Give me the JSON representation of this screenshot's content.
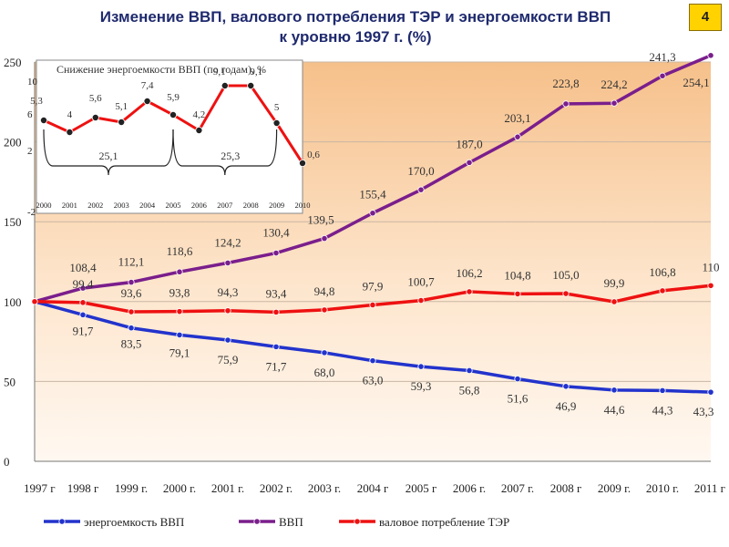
{
  "title_line1": "Изменение ВВП, валового потребления ТЭР и энергоемкости ВВП",
  "title_line2": "к уровню 1997 г. (%)",
  "slide_number": "4",
  "chart_data": [
    {
      "type": "line",
      "categories": [
        "1997 г",
        "1998 г",
        "1999 г.",
        "2000 г.",
        "2001 г.",
        "2002 г.",
        "2003 г.",
        "2004 г",
        "2005 г",
        "2006 г.",
        "2007 г.",
        "2008 г",
        "2009 г.",
        "2010 г.",
        "2011 г"
      ],
      "ylim": [
        0,
        250
      ],
      "yticks": [
        0,
        50,
        100,
        150,
        200,
        250
      ],
      "legend_position": "bottom",
      "series": [
        {
          "name": "энергоемкость ВВП",
          "color": "#2233cc",
          "values": [
            100,
            91.7,
            83.5,
            79.1,
            75.9,
            71.7,
            68.0,
            63.0,
            59.3,
            56.8,
            51.6,
            46.9,
            44.6,
            44.3,
            43.3
          ],
          "labels": [
            "",
            "91,7",
            "83,5",
            "79,1",
            "75,9",
            "71,7",
            "68,0",
            "63,0",
            "59,3",
            "56,8",
            "51,6",
            "46,9",
            "44,6",
            "44,3",
            "43,3"
          ]
        },
        {
          "name": "ВВП",
          "color": "#7a1e8c",
          "values": [
            100,
            108.4,
            112.1,
            118.6,
            124.2,
            130.4,
            139.5,
            155.4,
            170.0,
            187.0,
            203.1,
            223.8,
            224.2,
            241.3,
            254.1
          ],
          "labels": [
            "",
            "108,4",
            "112,1",
            "118,6",
            "124,2",
            "130,4",
            "139,5",
            "155,4",
            "170,0",
            "187,0",
            "203,1",
            "223,8",
            "224,2",
            "241,3",
            "254,1"
          ]
        },
        {
          "name": "валовое потребление ТЭР",
          "color": "#ee1111",
          "values": [
            100,
            99.4,
            93.6,
            93.8,
            94.3,
            93.4,
            94.8,
            97.9,
            100.7,
            106.2,
            104.8,
            105.0,
            99.9,
            106.8,
            110
          ],
          "labels": [
            "",
            "99,4",
            "93,6",
            "93,8",
            "94,3",
            "93,4",
            "94,8",
            "97,9",
            "100,7",
            "106,2",
            "104,8",
            "105,0",
            "99,9",
            "106,8",
            "110"
          ]
        }
      ]
    },
    {
      "type": "line",
      "title": "Снижение энергоемкости  ВВП (по годам), %",
      "categories": [
        "2000",
        "2001",
        "2002",
        "2003",
        "2004",
        "2005",
        "2006",
        "2007",
        "2008",
        "2009",
        "2010"
      ],
      "ylim": [
        -2,
        10
      ],
      "yticks": [
        -2,
        2,
        6,
        10
      ],
      "series": [
        {
          "color": "#ee1111",
          "values": [
            5.3,
            4,
            5.6,
            5.1,
            7.4,
            5.9,
            4.2,
            9.1,
            9.1,
            5,
            0.6
          ],
          "labels": [
            "5,3",
            "4",
            "5,6",
            "5,1",
            "7,4",
            "5,9",
            "4,2",
            "9,1",
            "9,1",
            "5",
            "0,6"
          ]
        }
      ],
      "annotations": [
        "25,1",
        "25,3"
      ]
    }
  ]
}
